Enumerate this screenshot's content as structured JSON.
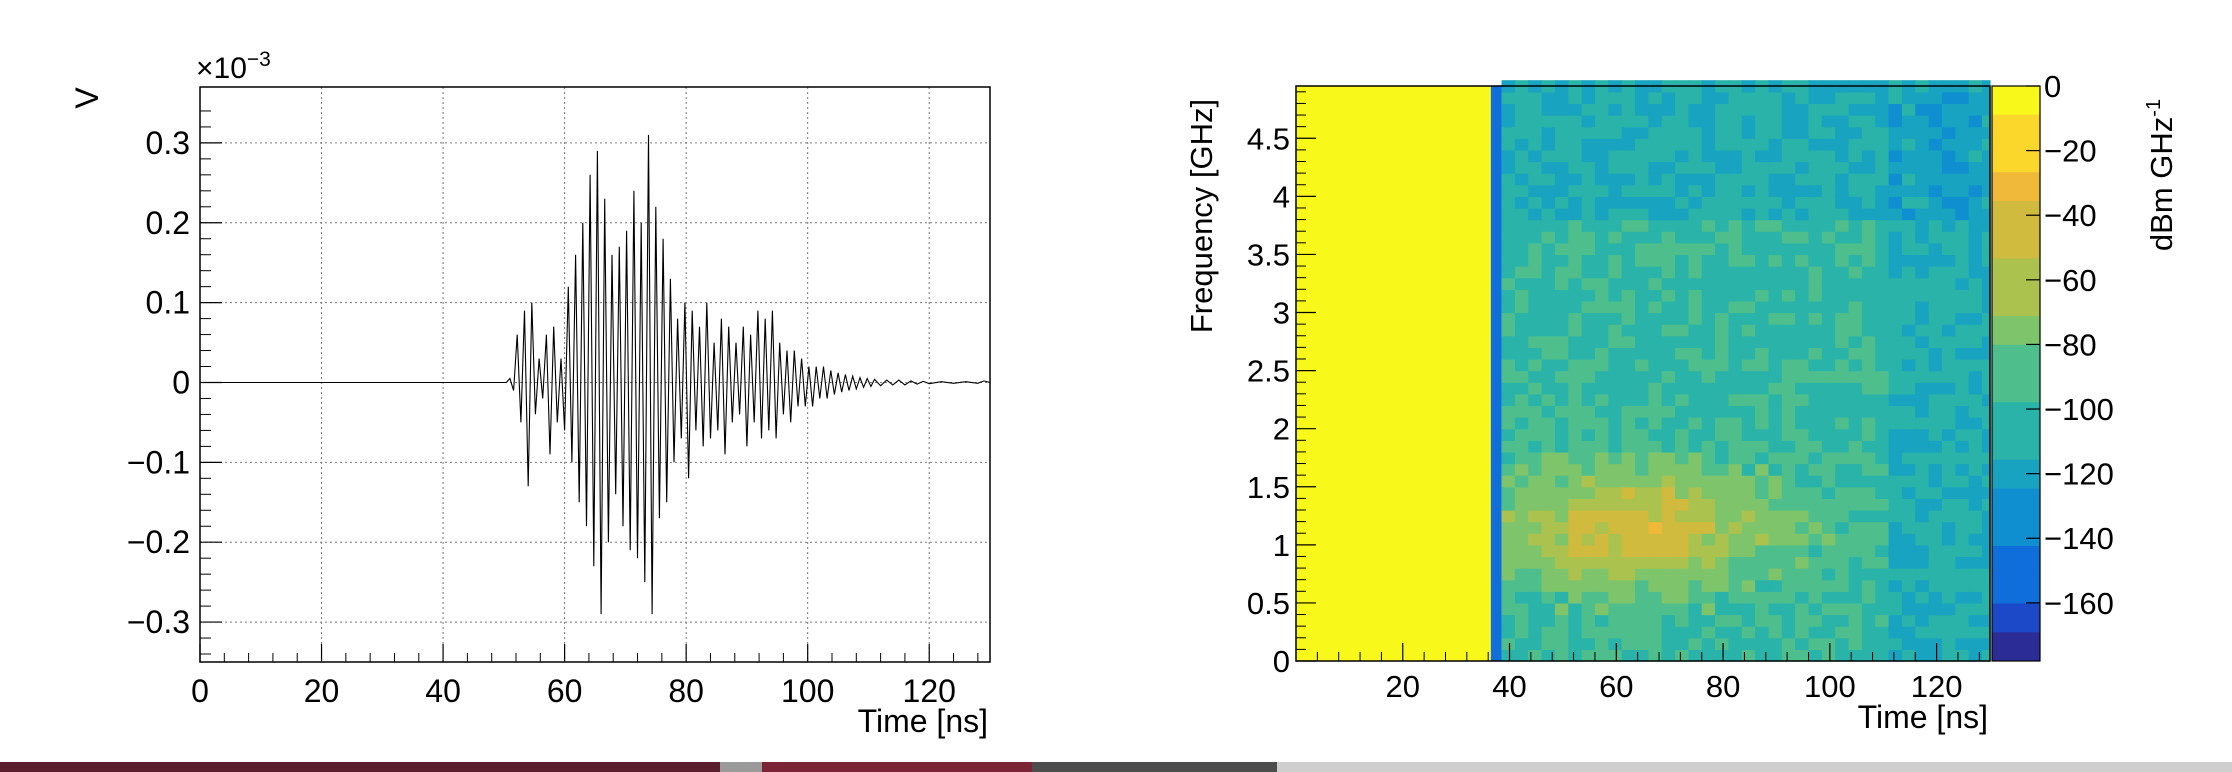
{
  "chart_data": [
    {
      "type": "line",
      "xlabel": "Time [ns]",
      "ylabel": "V",
      "multiplier": "×10",
      "multiplier_exp": "−3",
      "xlim": [
        0,
        130
      ],
      "ylim": [
        -0.35,
        0.37
      ],
      "xticks": [
        0,
        20,
        40,
        60,
        80,
        100,
        120
      ],
      "xtick_labels": [
        "0",
        "20",
        "40",
        "60",
        "80",
        "100",
        "120"
      ],
      "yticks": [
        -0.3,
        -0.2,
        -0.1,
        0,
        0.1,
        0.2,
        0.3
      ],
      "ytick_labels": [
        "−0.3",
        "−0.2",
        "−0.1",
        "0",
        "0.1",
        "0.2",
        "0.3"
      ],
      "grid": true,
      "series": [
        {
          "points": [
            [
              0,
              0
            ],
            [
              50.4,
              0
            ],
            [
              51.0,
              0.005
            ],
            [
              51.6,
              -0.01
            ],
            [
              52.2,
              0.06
            ],
            [
              52.8,
              -0.05
            ],
            [
              53.4,
              0.09
            ],
            [
              54.0,
              -0.13
            ],
            [
              54.6,
              0.1
            ],
            [
              55.2,
              -0.04
            ],
            [
              55.8,
              0.03
            ],
            [
              56.4,
              -0.02
            ],
            [
              57.0,
              0.06
            ],
            [
              57.6,
              -0.09
            ],
            [
              58.2,
              0.07
            ],
            [
              58.8,
              -0.05
            ],
            [
              59.4,
              0.03
            ],
            [
              60.0,
              -0.06
            ],
            [
              60.6,
              0.12
            ],
            [
              61.2,
              -0.1
            ],
            [
              61.8,
              0.16
            ],
            [
              62.4,
              -0.15
            ],
            [
              63.0,
              0.2
            ],
            [
              63.6,
              -0.18
            ],
            [
              64.2,
              0.26
            ],
            [
              64.8,
              -0.23
            ],
            [
              65.4,
              0.29
            ],
            [
              66.0,
              -0.29
            ],
            [
              66.6,
              0.23
            ],
            [
              67.2,
              -0.2
            ],
            [
              67.8,
              0.16
            ],
            [
              68.4,
              -0.14
            ],
            [
              69.0,
              0.17
            ],
            [
              69.6,
              -0.18
            ],
            [
              70.2,
              0.19
            ],
            [
              70.8,
              -0.21
            ],
            [
              71.4,
              0.24
            ],
            [
              72.0,
              -0.22
            ],
            [
              72.6,
              0.2
            ],
            [
              73.2,
              -0.25
            ],
            [
              73.8,
              0.31
            ],
            [
              74.4,
              -0.29
            ],
            [
              75.0,
              0.22
            ],
            [
              75.6,
              -0.17
            ],
            [
              76.2,
              0.18
            ],
            [
              76.8,
              -0.15
            ],
            [
              77.4,
              0.13
            ],
            [
              78.0,
              -0.1
            ],
            [
              78.6,
              0.08
            ],
            [
              79.2,
              -0.07
            ],
            [
              79.8,
              0.1
            ],
            [
              80.4,
              -0.12
            ],
            [
              81.0,
              0.09
            ],
            [
              81.6,
              -0.06
            ],
            [
              82.2,
              0.07
            ],
            [
              82.8,
              -0.08
            ],
            [
              83.4,
              0.1
            ],
            [
              84.0,
              -0.07
            ],
            [
              84.6,
              0.05
            ],
            [
              85.2,
              -0.06
            ],
            [
              85.8,
              0.08
            ],
            [
              86.4,
              -0.09
            ],
            [
              87.0,
              0.07
            ],
            [
              87.6,
              -0.05
            ],
            [
              88.2,
              0.05
            ],
            [
              88.8,
              -0.04
            ],
            [
              89.4,
              0.07
            ],
            [
              90.0,
              -0.08
            ],
            [
              90.6,
              0.06
            ],
            [
              91.2,
              -0.05
            ],
            [
              91.8,
              0.09
            ],
            [
              92.4,
              -0.07
            ],
            [
              93.0,
              0.08
            ],
            [
              93.6,
              -0.06
            ],
            [
              94.2,
              0.09
            ],
            [
              94.8,
              -0.07
            ],
            [
              95.4,
              0.05
            ],
            [
              96.0,
              -0.04
            ],
            [
              96.6,
              0.04
            ],
            [
              97.2,
              -0.05
            ],
            [
              97.8,
              0.04
            ],
            [
              98.4,
              -0.03
            ],
            [
              99.0,
              0.03
            ],
            [
              99.6,
              -0.03
            ],
            [
              100.2,
              0.02
            ],
            [
              100.8,
              -0.03
            ],
            [
              101.4,
              0.02
            ],
            [
              102.0,
              -0.02
            ],
            [
              102.6,
              0.02
            ],
            [
              103.2,
              -0.02
            ],
            [
              103.8,
              0.015
            ],
            [
              104.4,
              -0.015
            ],
            [
              105.0,
              0.012
            ],
            [
              105.6,
              -0.012
            ],
            [
              106.2,
              0.01
            ],
            [
              106.8,
              -0.01
            ],
            [
              107.4,
              0.008
            ],
            [
              108.0,
              -0.008
            ],
            [
              108.6,
              0.006
            ],
            [
              109.2,
              -0.006
            ],
            [
              109.8,
              0.005
            ],
            [
              110.4,
              -0.005
            ],
            [
              111.0,
              0.004
            ],
            [
              112.0,
              -0.004
            ],
            [
              113.0,
              0.003
            ],
            [
              114.0,
              -0.003
            ],
            [
              115.0,
              0.003
            ],
            [
              116.0,
              -0.003
            ],
            [
              117.0,
              0.002
            ],
            [
              118.0,
              -0.002
            ],
            [
              119.0,
              0.0015
            ],
            [
              120.0,
              -0.0015
            ],
            [
              122.0,
              0.001
            ],
            [
              124.0,
              -0.001
            ],
            [
              126.0,
              0.001
            ],
            [
              128.0,
              -0.001
            ],
            [
              129.0,
              0.002
            ],
            [
              130.0,
              0
            ]
          ]
        }
      ]
    },
    {
      "type": "heatmap",
      "xlabel": "Time [ns]",
      "ylabel": "Frequency [GHz]",
      "zlabel": "dBm GHz",
      "zlabel_sup": "-1",
      "xlim": [
        0,
        130
      ],
      "ylim": [
        0,
        4.95
      ],
      "zlim": [
        -178,
        0
      ],
      "xticks": [
        20,
        40,
        60,
        80,
        100,
        120
      ],
      "xtick_labels": [
        "20",
        "40",
        "60",
        "80",
        "100",
        "120"
      ],
      "yticks": [
        0,
        0.5,
        1,
        1.5,
        2,
        2.5,
        3,
        3.5,
        4,
        4.5
      ],
      "ytick_labels": [
        "0",
        "0.5",
        "1",
        "1.5",
        "2",
        "2.5",
        "3",
        "3.5",
        "4",
        "4.5"
      ],
      "zticks": [
        0,
        -20,
        -40,
        -60,
        -80,
        -100,
        -120,
        -140,
        -160
      ],
      "ztick_labels": [
        "0",
        "−20",
        "−40",
        "−60",
        "−80",
        "−100",
        "−120",
        "−140",
        "−160"
      ],
      "regions": [
        {
          "t_from": 0,
          "t_to": 36.5,
          "level_dbm": 0
        },
        {
          "t_from": 36.5,
          "t_to": 38.5,
          "level_dbm": -150
        },
        {
          "t_from": 38.5,
          "t_to": 130,
          "level_dbm": -100
        }
      ],
      "hotspot": {
        "t": 62,
        "f": 1.1,
        "level_dbm": -45
      },
      "palette": [
        "#2b2c95",
        "#1b49c8",
        "#0f6ed9",
        "#108fd0",
        "#18a3c0",
        "#2ab3a8",
        "#4ebf8c",
        "#7ec46a",
        "#abc24f",
        "#d0bb3e",
        "#f0b93a",
        "#fad72a",
        "#f8f91a"
      ]
    }
  ]
}
